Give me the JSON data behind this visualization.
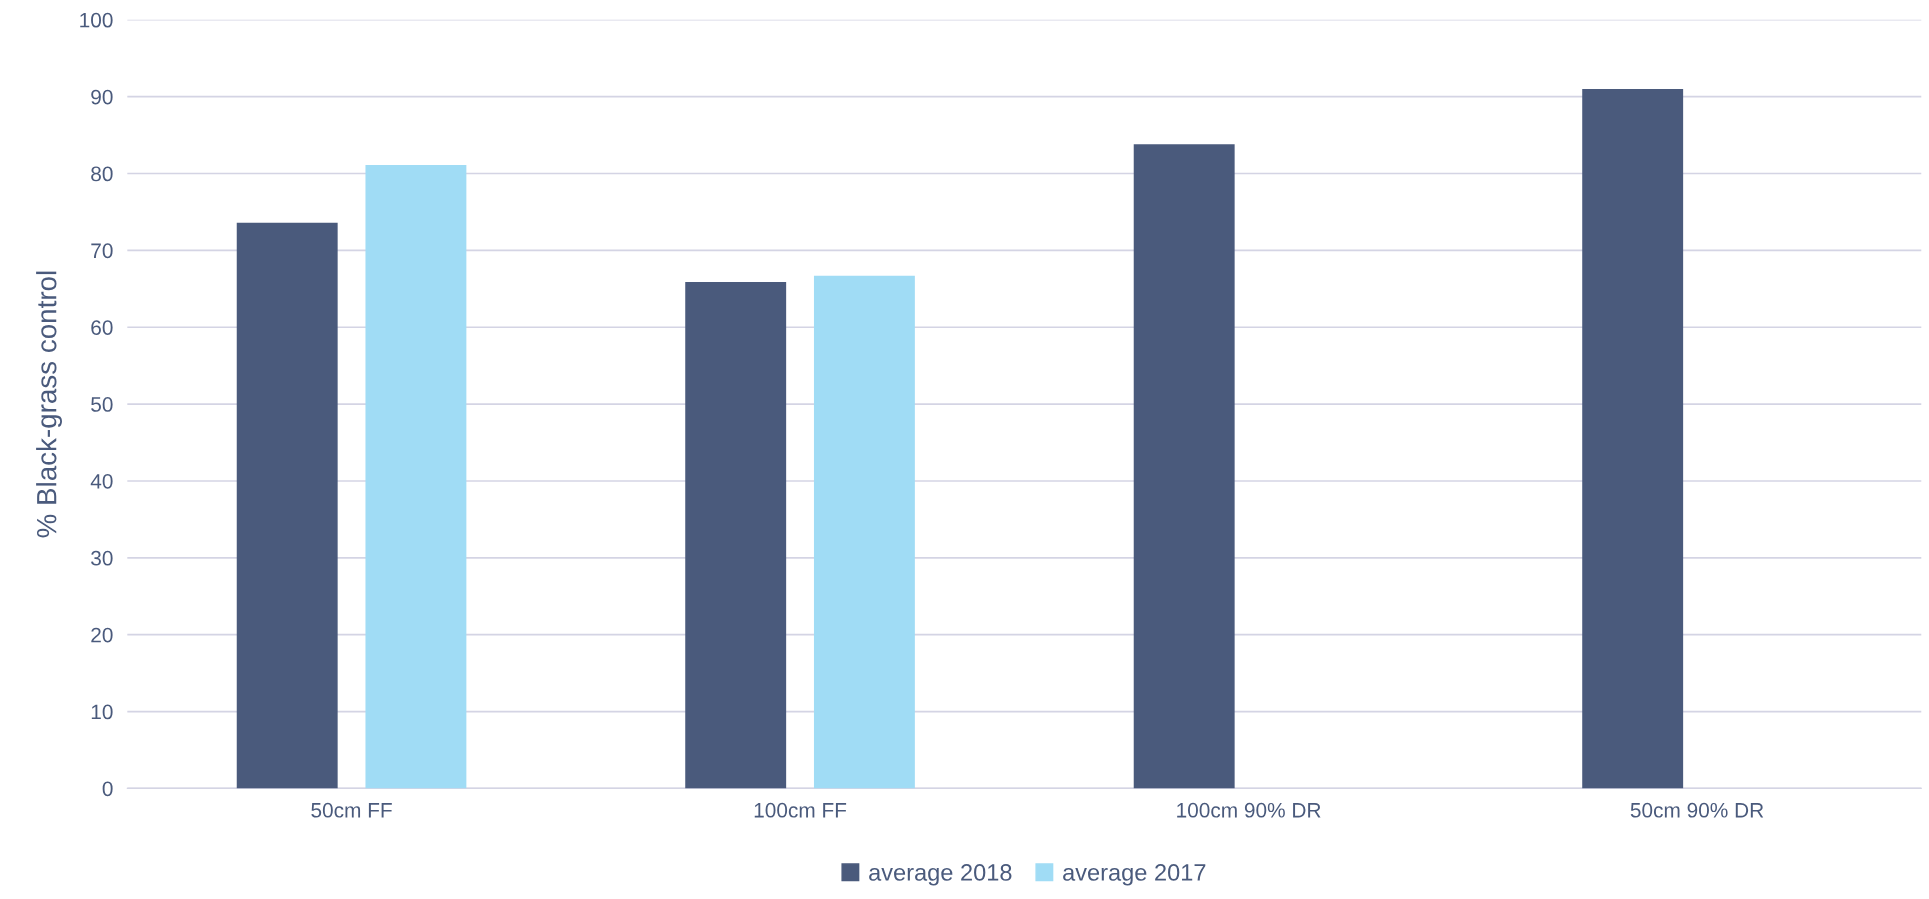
{
  "chart_data": {
    "type": "bar",
    "ylabel": "% Black-grass control",
    "categories": [
      "50cm FF",
      "100cm FF",
      "100cm 90% DR",
      "50cm 90% DR"
    ],
    "series": [
      {
        "name": "average 2018",
        "color": "#4a5a7c",
        "values": [
          73.6,
          65.9,
          83.8,
          91.0
        ]
      },
      {
        "name": "average 2017",
        "color": "#a0dcf5",
        "values": [
          81.1,
          66.7,
          null,
          null
        ]
      }
    ],
    "ylim": [
      0,
      100
    ],
    "yticks": [
      0,
      10,
      20,
      30,
      40,
      50,
      60,
      70,
      80,
      90,
      100
    ],
    "grid": "y",
    "legend": "bottom"
  }
}
